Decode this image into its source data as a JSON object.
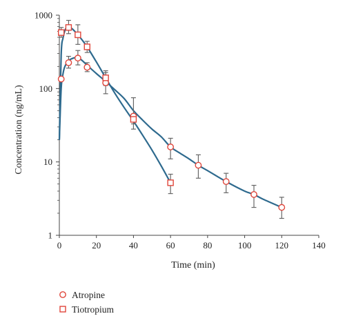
{
  "chart_data": {
    "type": "scatter",
    "title": "",
    "xlabel": "Time (min)",
    "ylabel": "Concentration (ng/mL)",
    "x_range": [
      0,
      140
    ],
    "x_ticks": [
      0,
      20,
      40,
      60,
      80,
      100,
      120,
      140
    ],
    "y_scale": "log",
    "y_range": [
      1,
      1000
    ],
    "y_ticks": [
      1,
      10,
      100,
      1000
    ],
    "grid": false,
    "legend_position": "bottom-left, below the plot",
    "curve_color": "#2e6a8e",
    "marker_color": "#e0453a",
    "errorbar_color": "#666666",
    "series": [
      {
        "name": "Atropine",
        "marker": "circle",
        "points": [
          {
            "x": 1,
            "y": 135,
            "err": [
              0,
              0
            ]
          },
          {
            "x": 5,
            "y": 225,
            "err": [
              190,
              275
            ]
          },
          {
            "x": 10,
            "y": 260,
            "err": [
              210,
              330
            ]
          },
          {
            "x": 15,
            "y": 195,
            "err": [
              170,
              225
            ]
          },
          {
            "x": 25,
            "y": 120,
            "err": [
              85,
              165
            ]
          },
          {
            "x": 40,
            "y": 42,
            "err": [
              28,
              75
            ]
          },
          {
            "x": 60,
            "y": 16,
            "err": [
              11,
              21
            ]
          },
          {
            "x": 75,
            "y": 9,
            "err": [
              6,
              12.5
            ]
          },
          {
            "x": 90,
            "y": 5.4,
            "err": [
              3.8,
              7
            ]
          },
          {
            "x": 105,
            "y": 3.6,
            "err": [
              2.4,
              4.8
            ]
          },
          {
            "x": 120,
            "y": 2.4,
            "err": [
              1.7,
              3.3
            ]
          }
        ],
        "fit": [
          [
            0,
            20
          ],
          [
            1,
            100
          ],
          [
            2,
            160
          ],
          [
            3,
            200
          ],
          [
            5,
            240
          ],
          [
            8,
            262
          ],
          [
            10,
            262
          ],
          [
            12,
            245
          ],
          [
            15,
            208
          ],
          [
            20,
            160
          ],
          [
            25,
            125
          ],
          [
            30,
            96
          ],
          [
            35,
            73
          ],
          [
            40,
            50
          ],
          [
            45,
            37
          ],
          [
            50,
            28
          ],
          [
            55,
            22
          ],
          [
            60,
            16
          ],
          [
            65,
            13.2
          ],
          [
            70,
            11
          ],
          [
            75,
            9
          ],
          [
            80,
            7.6
          ],
          [
            90,
            5.4
          ],
          [
            100,
            4
          ],
          [
            105,
            3.6
          ],
          [
            110,
            3.1
          ],
          [
            120,
            2.4
          ]
        ]
      },
      {
        "name": "Tiotropium",
        "marker": "square",
        "points": [
          {
            "x": 1,
            "y": 580,
            "err": [
              500,
              680
            ]
          },
          {
            "x": 5,
            "y": 680,
            "err": [
              560,
              850
            ]
          },
          {
            "x": 10,
            "y": 540,
            "err": [
              400,
              740
            ]
          },
          {
            "x": 15,
            "y": 370,
            "err": [
              310,
              440
            ]
          },
          {
            "x": 25,
            "y": 140,
            "err": [
              110,
              175
            ]
          },
          {
            "x": 40,
            "y": 38,
            "err": [
              33,
              45
            ]
          },
          {
            "x": 60,
            "y": 5.2,
            "err": [
              3.7,
              6.8
            ]
          }
        ],
        "fit": [
          [
            0,
            20
          ],
          [
            1,
            290
          ],
          [
            2,
            490
          ],
          [
            3,
            620
          ],
          [
            4,
            680
          ],
          [
            5,
            690
          ],
          [
            7,
            650
          ],
          [
            10,
            540
          ],
          [
            12,
            470
          ],
          [
            15,
            370
          ],
          [
            20,
            230
          ],
          [
            25,
            140
          ],
          [
            30,
            86
          ],
          [
            35,
            55
          ],
          [
            40,
            36
          ],
          [
            45,
            23
          ],
          [
            50,
            14.5
          ],
          [
            55,
            8.8
          ],
          [
            60,
            5.2
          ]
        ]
      }
    ]
  }
}
